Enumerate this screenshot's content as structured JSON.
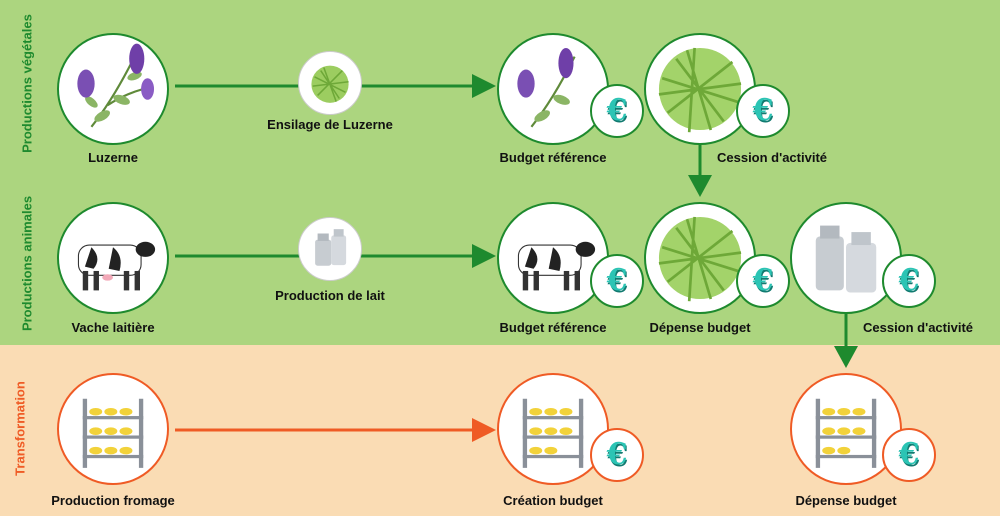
{
  "rows": {
    "vegetal": "Productions végétales",
    "animal": "Productions animales",
    "transform": "Transformation"
  },
  "labels": {
    "luzerne": "Luzerne",
    "ensilage": "Ensilage de Luzerne",
    "budget_ref_1": "Budget référence",
    "cession_1": "Cession d'activité",
    "vache": "Vache laitière",
    "production_lait": "Production de lait",
    "budget_ref_2": "Budget référence",
    "depense_1": "Dépense budget",
    "cession_2": "Cession d'activité",
    "production_fromage": "Production fromage",
    "creation_budget": "Création budget",
    "depense_2": "Dépense budget"
  },
  "euro_symbol": "€",
  "colors": {
    "green_band": "#acd57f",
    "orange_band": "#fadcb4",
    "green_accent": "#1e8a2e",
    "orange_accent": "#ef5b25",
    "euro_teal": "#2bc4b4"
  }
}
